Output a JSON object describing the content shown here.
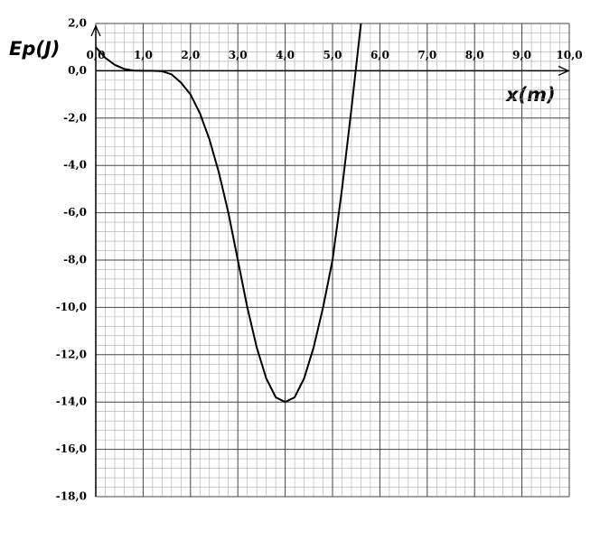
{
  "chart_data": {
    "type": "line",
    "y_label": "Ep(J)",
    "x_label": "x(m)",
    "x": [
      0,
      0.2,
      0.4,
      0.6,
      0.8,
      1.0,
      1.2,
      1.4,
      1.6,
      1.8,
      2.0,
      2.2,
      2.4,
      2.6,
      2.8,
      3.0,
      3.2,
      3.4,
      3.6,
      3.8,
      4.0,
      4.2,
      4.4,
      4.6,
      4.8,
      5.0,
      5.2,
      5.4,
      5.6
    ],
    "series": [
      {
        "color": "#000000",
        "values": [
          1.0,
          0.55,
          0.25,
          0.08,
          0.01,
          0,
          0,
          -0.02,
          -0.15,
          -0.5,
          -1.0,
          -1.8,
          -2.9,
          -4.3,
          -6.0,
          -8.0,
          -10.0,
          -11.7,
          -13.0,
          -13.8,
          -14.0,
          -13.8,
          -13.0,
          -11.7,
          -10.0,
          -8.0,
          -5.0,
          -1.6,
          2.0
        ]
      }
    ],
    "xlim": [
      0,
      10
    ],
    "ylim": [
      -18,
      2
    ],
    "xticks": [
      {
        "value": 0,
        "label": "0,0"
      },
      {
        "value": 1,
        "label": "1,0"
      },
      {
        "value": 2,
        "label": "2,0"
      },
      {
        "value": 3,
        "label": "3,0"
      },
      {
        "value": 4,
        "label": "4,0"
      },
      {
        "value": 5,
        "label": "5,0"
      },
      {
        "value": 6,
        "label": "6,0"
      },
      {
        "value": 7,
        "label": "7,0"
      },
      {
        "value": 8,
        "label": "8,0"
      },
      {
        "value": 9,
        "label": "9,0"
      },
      {
        "value": 10,
        "label": "10,0"
      }
    ],
    "yticks": [
      {
        "value": -18,
        "label": "-18,0"
      },
      {
        "value": -16,
        "label": "-16,0"
      },
      {
        "value": -14,
        "label": "-14,0"
      },
      {
        "value": -12,
        "label": "-12,0"
      },
      {
        "value": -10,
        "label": "-10,0"
      },
      {
        "value": -8,
        "label": "-8,0"
      },
      {
        "value": -6,
        "label": "-6,0"
      },
      {
        "value": -4,
        "label": "-4,0"
      },
      {
        "value": -2,
        "label": "-2,0"
      },
      {
        "value": 0,
        "label": "0,0"
      },
      {
        "value": 2,
        "label": "2,0"
      }
    ],
    "grid": true,
    "minor_divisions": 5
  }
}
